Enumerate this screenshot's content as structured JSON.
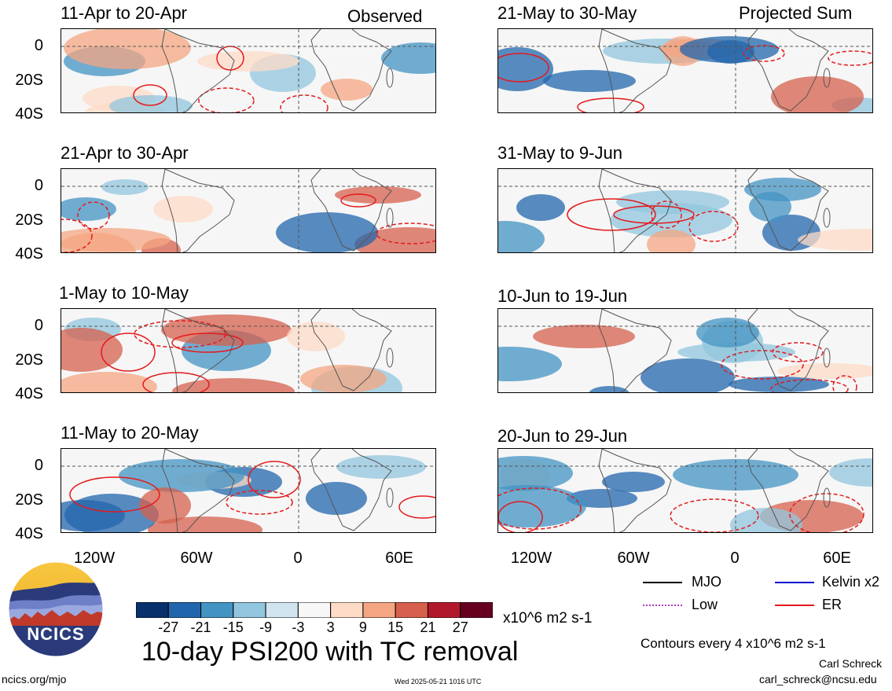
{
  "column_labels": {
    "left": "Observed",
    "right": "Projected Sum"
  },
  "panels": [
    {
      "title": "11-Apr to 20-Apr",
      "column": "left"
    },
    {
      "title": "21-Apr to 30-Apr",
      "column": "left"
    },
    {
      "title": "1-May to 10-May",
      "column": "left"
    },
    {
      "title": "11-May to 20-May",
      "column": "left"
    },
    {
      "title": "21-May to 30-May",
      "column": "right"
    },
    {
      "title": "31-May to 9-Jun",
      "column": "right"
    },
    {
      "title": "10-Jun to 19-Jun",
      "column": "right"
    },
    {
      "title": "20-Jun to 29-Jun",
      "column": "right"
    }
  ],
  "y_axis_labels": [
    "0",
    "20S",
    "40S"
  ],
  "x_axis_labels": [
    "120W",
    "60W",
    "0",
    "60E"
  ],
  "colorbar": {
    "labels": [
      "-27",
      "-21",
      "-15",
      "-9",
      "-3",
      "3",
      "9",
      "15",
      "21",
      "27"
    ],
    "units": "x10^6 m2 s-1",
    "colors": [
      "#08306b",
      "#2166ac",
      "#4393c3",
      "#92c5de",
      "#d1e5f0",
      "#f7f7f7",
      "#fddbc7",
      "#f4a582",
      "#d6604d",
      "#b2182b",
      "#67001f"
    ]
  },
  "main_title": "10-day PSI200 with TC removal",
  "legend": {
    "items": [
      {
        "label": "MJO",
        "color": "#000000",
        "style": "solid"
      },
      {
        "label": "Kelvin x2",
        "color": "#0000cc",
        "style": "solid"
      },
      {
        "label": "Low",
        "color": "#b040c0",
        "style": "dotted"
      },
      {
        "label": "ER",
        "color": "#e41a1c",
        "style": "solid"
      }
    ],
    "contour_note": "Contours every 4 x10^6 m2 s-1"
  },
  "logo_text": "NCICS",
  "footer": {
    "website": "ncics.org/mjo",
    "timestamp": "Wed 2025-05-21 1016 UTC",
    "author": "Carl Schreck",
    "email": "carl_schreck@ncsu.edu"
  }
}
